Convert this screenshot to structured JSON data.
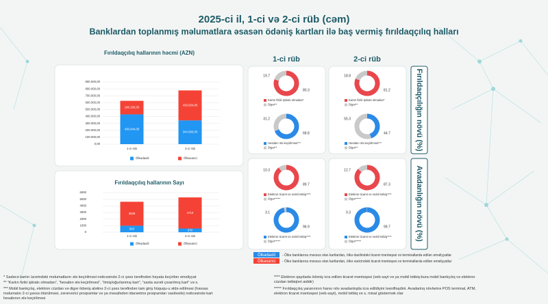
{
  "header": {
    "title": "2025-ci il, 1-ci və 2-ci rüb (cəm)",
    "subtitle": "Banklardan toplanmış məlumatlara əsasən ödəniş kartları ilə baş vermiş fırıldaqçılıq halları"
  },
  "panels": {
    "columns": [
      "1-ci rüb",
      "2-ci rüb"
    ],
    "rows": [
      "Fırıldaqçılığın növü (%)",
      "Avadanlığın növü (%)"
    ]
  },
  "legend_notes": [
    "- Ölkə banklarına məxsus olan kartlardan, ölkə daxilindəki ticarət məntəqəsi və terminallarda edilən əməliyyatlar",
    "- Ölkə banklarına məxsus olan kartlardan, ölkə xaricindəki ticarət məntəqəsi və terminallarda edilən əməliyyatlar"
  ],
  "footnotes": [
    "* Sadəcə kartın üzərindəki məlumatların ələ keçirilməsi nəticəsində 2-ci şəxs tərəfindən həyata keçirilən əməliyyat",
    "** “Kartın fiziki iştirakı olmadan”, “hesabın ələ keçirilməsi”, “itmiş/oğurlanmış kart”, “saxta surəti çıxarılmış kart” və s.",
    "*** Mobil bankçılıq, elektron cüzdan və digər ödəniş alətinə 2-ci şəxs tərəfindən tam giriş hüququ-u əldə edilməsi (həssas məlumatın 2-ci şəxsə ötürülməsi, zərərverici proqramlar və ya məsafədən idarəetmə proqramları vasitəsilə) nəticəsində kart hesabının ələ keçirilməsi",
    "**** Elektron qaydada ödəniş icra edilən ticarət məntəqəsi (veb-sayt və ya mobil tətbiq-bura mobil bankçılıq və elektron cüzdan tətbiqləri aiddir)",
    "***** Fırıldaqçılıq yaranırının hansı növ avadanlıqda icra edildiyini təsnifləşdirir. Avadanlıq növlərinə POS terminal, ATM, elektron ticarət məntəqəsi (veb-sayt), mobil tətbiq və s. misal göstərmək olar"
  ],
  "chart_data": [
    {
      "type": "bar",
      "stacked": true,
      "title": "Fırıldaqçılıq hallarının həcmi (AZN)",
      "categories": [
        "1-ci rüb",
        "2-ci rüb"
      ],
      "series": [
        {
          "name": "Ölkədaxili",
          "color": "#2196f3",
          "values": [
            430944,
            344093
          ],
          "value_labels": [
            "430.944,00",
            "344.093,00"
          ]
        },
        {
          "name": "Ölkəxarici",
          "color": "#f44336",
          "values": [
            196183,
            433934
          ],
          "value_labels": [
            "196.183,00",
            "433.934,00"
          ]
        }
      ],
      "ylim": [
        0,
        900000
      ],
      "yticks": [
        {
          "value": 0,
          "label": "0,00"
        },
        {
          "value": 100000,
          "label": "100.000,00"
        },
        {
          "value": 200000,
          "label": "200.000,00"
        },
        {
          "value": 300000,
          "label": "300.000,00"
        },
        {
          "value": 400000,
          "label": "400.000,00"
        },
        {
          "value": 500000,
          "label": "500.000,00"
        },
        {
          "value": 600000,
          "label": "600.000,00"
        },
        {
          "value": 700000,
          "label": "700.000,00"
        },
        {
          "value": 800000,
          "label": "800.000,00"
        },
        {
          "value": 900000,
          "label": "900.000,00"
        }
      ],
      "grid": true
    },
    {
      "type": "bar",
      "stacked": true,
      "title": "Fırıldaqçılıq hallarının Sayı",
      "categories": [
        "1-ci rüb",
        "2-ci rüb"
      ],
      "series": [
        {
          "name": "Ölkədaxili",
          "color": "#2196f3",
          "values": [
            993,
            570
          ]
        },
        {
          "name": "Ölkəxarici",
          "color": "#f44336",
          "values": [
            3628,
            4710
          ]
        }
      ],
      "ylim": [
        0,
        6000
      ],
      "yticks": [
        0,
        1000,
        2000,
        3000,
        4000,
        5000,
        6000
      ],
      "grid": true
    },
    {
      "type": "donut",
      "categories": [
        "Kartın fiziki iştirakı olmadan*",
        "Digər**"
      ],
      "values": [
        80.3,
        19.7
      ],
      "colors": [
        "#e8474c",
        "#c9c9c9"
      ]
    },
    {
      "type": "donut",
      "categories": [
        "Hesabın ələ keçirilməsi***",
        "Digər**"
      ],
      "values": [
        68.8,
        31.2
      ],
      "colors": [
        "#2a8ae6",
        "#c9c9c9"
      ]
    },
    {
      "type": "donut",
      "categories": [
        "Kartın fiziki iştirakı olmadan*",
        "Digər**"
      ],
      "values": [
        81.2,
        18.8
      ],
      "colors": [
        "#e8474c",
        "#c9c9c9"
      ]
    },
    {
      "type": "donut",
      "categories": [
        "Hesabın ələ keçirilməsi***",
        "Digər**"
      ],
      "values": [
        44.7,
        55.3
      ],
      "colors": [
        "#2a8ae6",
        "#c9c9c9"
      ]
    },
    {
      "type": "donut",
      "categories": [
        "Elektron ticarət və mobil tətbiq****",
        "Digər*****"
      ],
      "values": [
        89.7,
        10.3
      ],
      "colors": [
        "#e8474c",
        "#c9c9c9"
      ]
    },
    {
      "type": "donut",
      "categories": [
        "Elektron ticarət və mobil tətbiq****",
        "Digər*****"
      ],
      "values": [
        96.9,
        3.1
      ],
      "colors": [
        "#2a8ae6",
        "#c9c9c9"
      ]
    },
    {
      "type": "donut",
      "categories": [
        "Elektron ticarət və mobil tətbiq****",
        "Digər*****"
      ],
      "values": [
        87.3,
        12.7
      ],
      "colors": [
        "#e8474c",
        "#c9c9c9"
      ]
    },
    {
      "type": "donut",
      "categories": [
        "Elektron ticarət və mobil tətbiq****",
        "Digər*****"
      ],
      "values": [
        99.7,
        0.3
      ],
      "colors": [
        "#2a8ae6",
        "#c9c9c9"
      ]
    }
  ]
}
